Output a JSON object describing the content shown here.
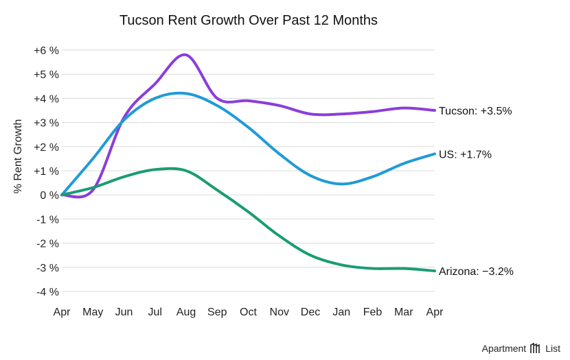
{
  "chart_data": {
    "type": "line",
    "title": "Tucson Rent Growth Over Past 12 Months",
    "ylabel": "% Rent Growth",
    "xlabel": "",
    "categories": [
      "Apr",
      "May",
      "Jun",
      "Jul",
      "Aug",
      "Sep",
      "Oct",
      "Nov",
      "Dec",
      "Jan",
      "Feb",
      "Mar",
      "Apr"
    ],
    "ylim": [
      -4,
      6
    ],
    "yticks": [
      {
        "value": 6,
        "label": "+6 %"
      },
      {
        "value": 5,
        "label": "+5 %"
      },
      {
        "value": 4,
        "label": "+4 %"
      },
      {
        "value": 3,
        "label": "+3 %"
      },
      {
        "value": 2,
        "label": "+2 %"
      },
      {
        "value": 1,
        "label": "+1 %"
      },
      {
        "value": 0,
        "label": "0 %"
      },
      {
        "value": -1,
        "label": "-1 %"
      },
      {
        "value": -2,
        "label": "-2 %"
      },
      {
        "value": -3,
        "label": "-3 %"
      },
      {
        "value": -4,
        "label": "-4 %"
      }
    ],
    "grid": true,
    "series": [
      {
        "name": "Tucson",
        "color": "#8a3ddb",
        "values": [
          0,
          0.2,
          3.2,
          4.6,
          5.8,
          4.0,
          3.9,
          3.7,
          3.35,
          3.35,
          3.45,
          3.6,
          3.5
        ],
        "end_label": "Tucson: +3.5%"
      },
      {
        "name": "US",
        "color": "#1f9bd7",
        "values": [
          0,
          1.5,
          3.1,
          4.0,
          4.2,
          3.7,
          2.8,
          1.7,
          0.8,
          0.45,
          0.75,
          1.3,
          1.7
        ],
        "end_label": "US: +1.7%"
      },
      {
        "name": "Arizona",
        "color": "#1a9c74",
        "values": [
          0,
          0.3,
          0.75,
          1.05,
          1.0,
          0.2,
          -0.7,
          -1.7,
          -2.5,
          -2.9,
          -3.05,
          -3.05,
          -3.15
        ],
        "end_label": "Arizona: −3.2%"
      }
    ]
  },
  "brand": {
    "name": "Apartment",
    "name_suffix": "List",
    "icon": "apartment-list-logo-icon"
  }
}
